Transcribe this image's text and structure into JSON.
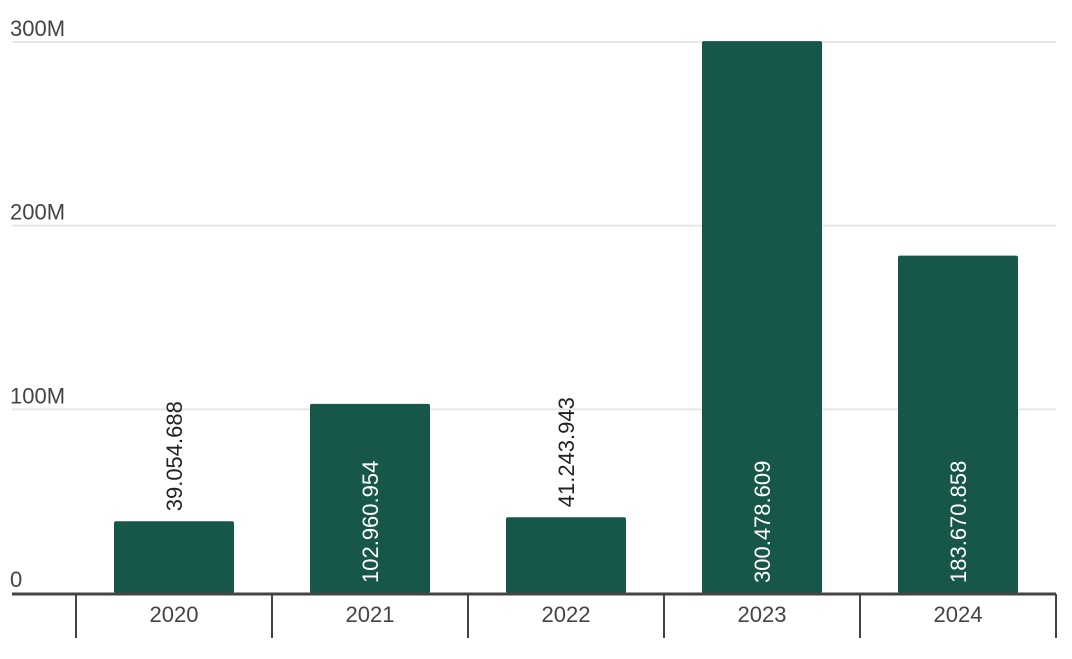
{
  "chart_data": {
    "type": "bar",
    "categories": [
      "2020",
      "2021",
      "2022",
      "2023",
      "2024"
    ],
    "values": [
      39054688,
      102960954,
      41243943,
      300478609,
      183670858
    ],
    "data_labels": [
      "39.054.688",
      "102.960.954",
      "41.243.943",
      "300.478.609",
      "183.670.858"
    ],
    "y_ticks": [
      {
        "value": 0,
        "label": "0"
      },
      {
        "value": 100000000,
        "label": "100M"
      },
      {
        "value": 200000000,
        "label": "200M"
      },
      {
        "value": 300000000,
        "label": "300M"
      }
    ],
    "ylim": [
      0,
      300000000
    ],
    "grid": true,
    "title": "",
    "xlabel": "",
    "ylabel": "",
    "colors": {
      "bar": "#17574a",
      "grid": "#e6e6e6",
      "axis": "#444444",
      "label_inside": "#ffffff",
      "label_outside": "#222222"
    }
  }
}
